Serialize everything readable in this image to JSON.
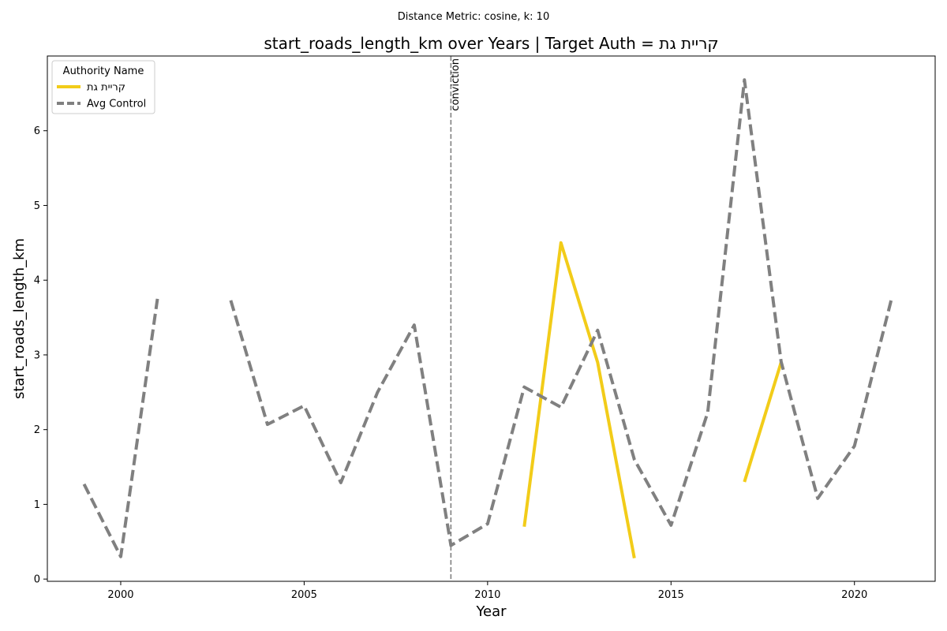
{
  "suptitle": "Distance Metric: cosine, k: 10",
  "chart_data": {
    "type": "line",
    "title": "start_roads_length_km over Years | Target Auth = קריית גת",
    "xlabel": "Year",
    "ylabel": "start_roads_length_km",
    "xlim": [
      1998,
      2022.2
    ],
    "ylim": [
      -0.03,
      7.0
    ],
    "xticks": [
      2000,
      2005,
      2010,
      2015,
      2020
    ],
    "yticks": [
      0,
      1,
      2,
      3,
      4,
      5,
      6
    ],
    "grid": false,
    "legend": {
      "title": "Authority Name",
      "placement": "top-left",
      "entries": [
        "קריית גת",
        "Avg Control"
      ]
    },
    "annotation": {
      "label": "conviction",
      "x": 2009
    },
    "series": [
      {
        "name": "קריית גת",
        "color": "#f2cc19",
        "dash": "solid",
        "points": [
          [
            2011,
            0.7
          ],
          [
            2012,
            4.5
          ],
          [
            2013,
            2.9
          ],
          [
            2014,
            0.28
          ],
          [
            2015,
            null
          ],
          [
            2016,
            null
          ],
          [
            2017,
            1.3
          ],
          [
            2018,
            2.9
          ]
        ]
      },
      {
        "name": "Avg Control",
        "color": "#808080",
        "dash": "dashed",
        "points": [
          [
            1999,
            1.27
          ],
          [
            2000,
            0.3
          ],
          [
            2001,
            3.75
          ],
          [
            2002,
            null
          ],
          [
            2003,
            3.73
          ],
          [
            2004,
            2.07
          ],
          [
            2005,
            2.32
          ],
          [
            2006,
            1.29
          ],
          [
            2007,
            2.5
          ],
          [
            2008,
            3.4
          ],
          [
            2009,
            0.45
          ],
          [
            2010,
            0.74
          ],
          [
            2011,
            2.57
          ],
          [
            2012,
            2.3
          ],
          [
            2013,
            3.33
          ],
          [
            2014,
            1.6
          ],
          [
            2015,
            0.72
          ],
          [
            2016,
            2.23
          ],
          [
            2017,
            6.68
          ],
          [
            2018,
            2.91
          ],
          [
            2019,
            1.08
          ],
          [
            2020,
            1.78
          ],
          [
            2021,
            3.73
          ]
        ]
      }
    ]
  }
}
